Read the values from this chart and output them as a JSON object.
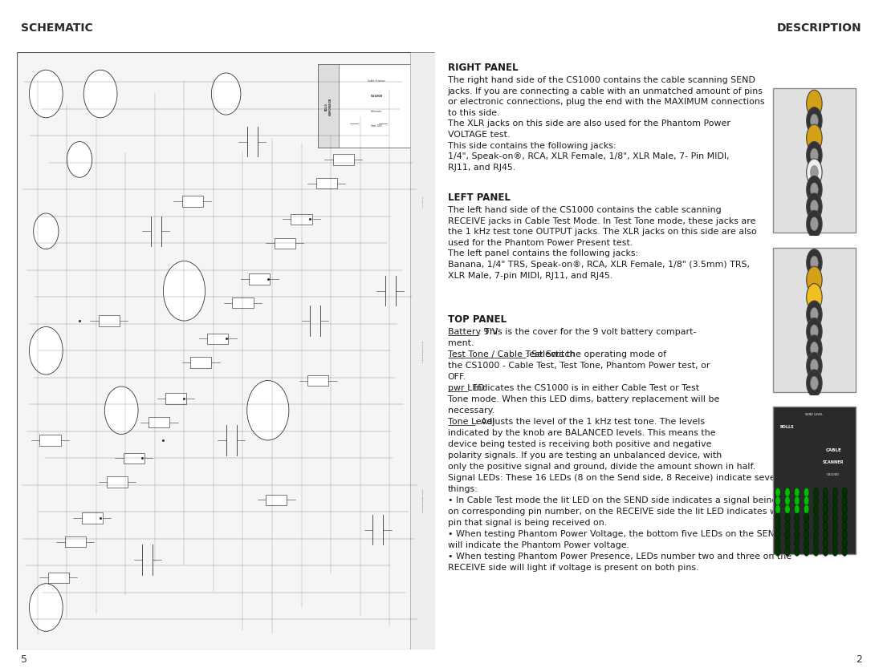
{
  "bg_color": "#ffffff",
  "header_bg": "#a0a0a0",
  "header_text_color": "#2a2a2a",
  "header_left": "SCHEMATIC",
  "header_right": "DESCRIPTION",
  "header_fontsize": 10,
  "divider_color": "#888888",
  "page_num_left": "5",
  "page_num_right": "2",
  "right_panel_heading": "RIGHT PANEL",
  "left_panel_heading": "LEFT PANEL",
  "top_panel_heading": "TOP PANEL",
  "text_color": "#1a1a1a",
  "body_fontsize": 8.2,
  "heading_fontsize": 8.5,
  "top_lines": [
    [
      "Battery 9 V",
      true,
      ": This is the cover for the 9 volt battery compart-"
    ],
    [
      null,
      false,
      "ment."
    ],
    [
      "Test Tone / Cable Test Switch",
      true,
      ": Selects the operating mode of"
    ],
    [
      null,
      false,
      "the CS1000 - Cable Test, Test Tone, Phantom Power test, or"
    ],
    [
      null,
      false,
      "OFF."
    ],
    [
      "pwr LED",
      true,
      ": Indicates the CS1000 is in either Cable Test or Test"
    ],
    [
      null,
      false,
      "Tone mode. When this LED dims, battery replacement will be"
    ],
    [
      null,
      false,
      "necessary."
    ],
    [
      "Tone Level",
      true,
      ": Adjusts the level of the 1 kHz test tone. The levels"
    ],
    [
      null,
      false,
      "indicated by the knob are BALANCED levels. This means the"
    ],
    [
      null,
      false,
      "device being tested is receiving both positive and negative"
    ],
    [
      null,
      false,
      "polarity signals. If you are testing an unbalanced device, with"
    ],
    [
      null,
      false,
      "only the positive signal and ground, divide the amount shown in half."
    ],
    [
      null,
      false,
      "Signal LEDs: These 16 LEDs (8 on the Send side, 8 Receive) indicate several"
    ],
    [
      null,
      false,
      "things:"
    ],
    [
      null,
      false,
      "• In Cable Test mode the lit LED on the SEND side indicates a signal being sent"
    ],
    [
      null,
      false,
      "on corresponding pin number, on the RECEIVE side the lit LED indicates which"
    ],
    [
      null,
      false,
      "pin that signal is being received on."
    ],
    [
      null,
      false,
      "• When testing Phantom Power Voltage, the bottom five LEDs on the SEND side"
    ],
    [
      null,
      false,
      "will indicate the Phantom Power voltage."
    ],
    [
      null,
      false,
      "• When testing Phantom Power Presence, LEDs number two and three on the"
    ],
    [
      null,
      false,
      "RECEIVE side will light if voltage is present on both pins."
    ]
  ],
  "right_panel_text": "The right hand side of the CS1000 contains the cable scanning SEND\njacks. If you are connecting a cable with an unmatched amount of pins\nor electronic connections, plug the end with the MAXIMUM connections\nto this side.\nThe XLR jacks on this side are also used for the Phantom Power\nVOLTAGE test.\nThis side contains the following jacks:\n1/4\", Speak-on®, RCA, XLR Female, 1/8\", XLR Male, 7- Pin MIDI,\nRJ11, and RJ45.",
  "left_panel_text": "The left hand side of the CS1000 contains the cable scanning\nRECEIVE jacks in Cable Test Mode. In Test Tone mode, these jacks are\nthe 1 kHz test tone OUTPUT jacks. The XLR jacks on this side are also\nused for the Phantom Power Present test.\nThe left panel contains the following jacks:\nBanana, 1/4\" TRS, Speak-on®, RCA, XLR Female, 1/8\" (3.5mm) TRS,\nXLR Male, 7-pin MIDI, RJ11, and RJ45."
}
